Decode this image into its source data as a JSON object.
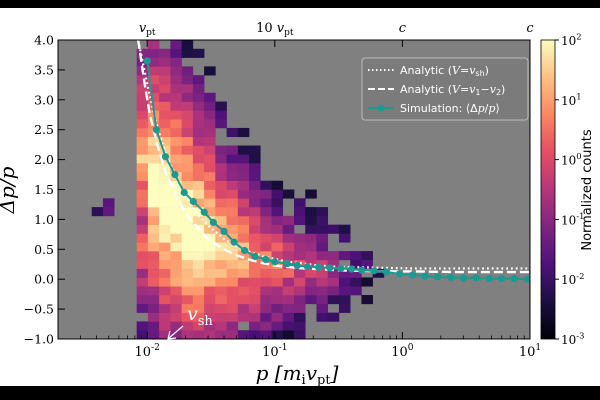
{
  "chart_data": {
    "type": "heatmap",
    "xscale": "log",
    "xlim": [
      0.002,
      10
    ],
    "ylim": [
      -1.0,
      4.0
    ],
    "xlabel": "p [m_i v_pt]",
    "ylabel": "Δp/p",
    "x_ticks": [
      0.01,
      0.1,
      1,
      10
    ],
    "x_tick_labels": [
      "10^-2",
      "10^-1",
      "10^0",
      "10^1"
    ],
    "y_ticks": [
      -1.0,
      -0.5,
      0.0,
      0.5,
      1.0,
      1.5,
      2.0,
      2.5,
      3.0,
      3.5,
      4.0
    ],
    "y_tick_labels": [
      "−1.0",
      "−0.5",
      "0.0",
      "0.5",
      "1.0",
      "1.5",
      "2.0",
      "2.5",
      "3.0",
      "3.5",
      "4.0"
    ],
    "top_axis_labels": [
      {
        "x": 0.01,
        "label": "v_pt"
      },
      {
        "x": 0.1,
        "label": "10 v_pt"
      },
      {
        "x": 1,
        "label": "c"
      },
      {
        "x": 10,
        "label": "c"
      }
    ],
    "annotation": {
      "text": "v_sh",
      "x": 0.0118,
      "y": -1.0
    },
    "colorbar": {
      "label": "Normalized counts",
      "scale": "log",
      "range": [
        0.001,
        100
      ],
      "tick_labels": [
        "10^-3",
        "10^-2",
        "10^-1",
        "10^0",
        "10^1",
        "10^2"
      ]
    },
    "legend": {
      "placement": "top-right",
      "entries": [
        {
          "label": "Analytic (V=v_sh)",
          "style": "dotted",
          "color": "#ffffff"
        },
        {
          "label": "Analytic (V=v_1−v_2)",
          "style": "dashed",
          "color": "#ffffff"
        },
        {
          "label": "Simulation: ⟨Δp/p⟩",
          "style": "line-marker",
          "color": "#1b9a91"
        }
      ]
    },
    "series": [
      {
        "name": "Simulation: ⟨Δp/p⟩",
        "x": [
          0.01,
          0.0118,
          0.0139,
          0.0165,
          0.0195,
          0.023,
          0.028,
          0.033,
          0.04,
          0.048,
          0.058,
          0.07,
          0.085,
          0.1,
          0.125,
          0.15,
          0.18,
          0.22,
          0.27,
          0.33,
          0.4,
          0.48,
          0.6,
          0.75,
          0.95,
          1.2,
          1.5,
          1.9,
          2.4,
          3.0,
          3.8,
          4.8,
          6.0,
          7.5,
          9.5
        ],
        "y": [
          3.65,
          2.5,
          2.05,
          1.75,
          1.45,
          1.3,
          1.12,
          0.95,
          0.8,
          0.62,
          0.48,
          0.38,
          0.33,
          0.29,
          0.26,
          0.23,
          0.21,
          0.2,
          0.19,
          0.18,
          0.17,
          0.15,
          0.14,
          0.12,
          0.09,
          0.07,
          0.05,
          0.04,
          0.03,
          0.02,
          0.02,
          0.01,
          0.01,
          0.01,
          0.0
        ]
      },
      {
        "name": "Analytic (V=v_sh)",
        "x": [
          0.0085,
          0.0095,
          0.0105,
          0.012,
          0.014,
          0.017,
          0.02,
          0.025,
          0.03,
          0.04,
          0.05,
          0.065,
          0.08,
          0.1,
          0.13,
          0.17,
          0.22,
          0.3,
          0.45,
          0.7,
          1.2,
          2.5,
          5.0,
          10.0
        ],
        "y": [
          4.0,
          3.5,
          3.05,
          2.55,
          2.1,
          1.7,
          1.38,
          1.08,
          0.9,
          0.67,
          0.55,
          0.45,
          0.39,
          0.34,
          0.29,
          0.26,
          0.23,
          0.21,
          0.2,
          0.19,
          0.18,
          0.18,
          0.18,
          0.18
        ]
      },
      {
        "name": "Analytic (V=v_1−v_2)",
        "x": [
          0.0085,
          0.0095,
          0.0105,
          0.012,
          0.014,
          0.017,
          0.02,
          0.025,
          0.03,
          0.04,
          0.05,
          0.065,
          0.08,
          0.1,
          0.13,
          0.17,
          0.22,
          0.3,
          0.45,
          0.7,
          1.2,
          2.5,
          5.0,
          10.0
        ],
        "y": [
          4.0,
          3.3,
          2.75,
          2.25,
          1.78,
          1.38,
          1.1,
          0.85,
          0.67,
          0.5,
          0.4,
          0.32,
          0.27,
          0.23,
          0.2,
          0.18,
          0.17,
          0.15,
          0.14,
          0.13,
          0.13,
          0.12,
          0.12,
          0.12
        ]
      }
    ]
  }
}
